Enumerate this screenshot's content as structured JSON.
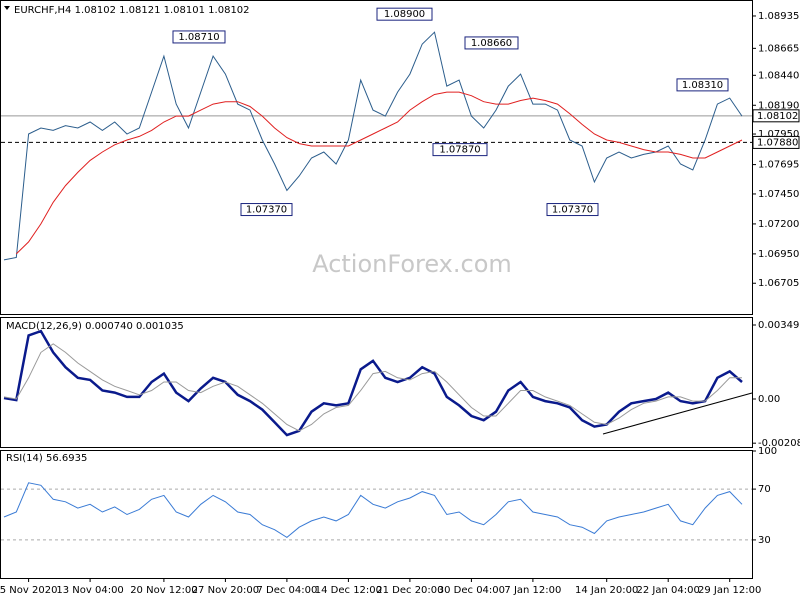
{
  "watermark": "ActionForex.com",
  "chart_data": [
    {
      "type": "line",
      "title": "EURCHF,H4  1.08102 1.08121 1.08101 1.08102",
      "ylim": [
        1.0644,
        1.0906
      ],
      "yticks": [
        1.08935,
        1.08665,
        {
          "value": 1.0844,
          "label": "1.08440"
        },
        {
          "value": 1.0819,
          "label": "1.08190"
        },
        {
          "value": 1.0795,
          "label": "1.07950"
        },
        1.07695,
        {
          "value": 1.0745,
          "label": "1.07450"
        },
        {
          "value": 1.072,
          "label": "1.07200"
        },
        {
          "value": 1.0695,
          "label": "1.06950"
        },
        1.06705
      ],
      "series": [
        {
          "color": "#2b5d8c",
          "values": [
            1.069,
            1.0692,
            1.0795,
            1.08,
            1.0798,
            1.0802,
            1.08,
            1.0805,
            1.0798,
            1.0805,
            1.0795,
            1.08,
            1.083,
            1.086,
            1.082,
            1.08,
            1.083,
            1.086,
            1.0845,
            1.082,
            1.0815,
            1.079,
            1.077,
            1.0748,
            1.076,
            1.0775,
            1.078,
            1.077,
            1.079,
            1.084,
            1.0815,
            1.081,
            1.083,
            1.0845,
            1.087,
            1.088,
            1.0835,
            1.084,
            1.081,
            1.08,
            1.0815,
            1.0835,
            1.0845,
            1.082,
            1.082,
            1.0815,
            1.079,
            1.0785,
            1.0755,
            1.0775,
            1.078,
            1.0775,
            1.0778,
            1.078,
            1.0785,
            1.077,
            1.0765,
            1.079,
            1.082,
            1.0825,
            1.081
          ]
        },
        {
          "color": "#e02020",
          "values": [
            null,
            1.0695,
            1.0705,
            1.072,
            1.0738,
            1.0752,
            1.0763,
            1.0773,
            1.078,
            1.0786,
            1.079,
            1.0793,
            1.0798,
            1.0805,
            1.081,
            1.081,
            1.0815,
            1.082,
            1.0822,
            1.0822,
            1.0818,
            1.081,
            1.08,
            1.0792,
            1.0787,
            1.0785,
            1.0785,
            1.0785,
            1.0785,
            1.079,
            1.0795,
            1.08,
            1.0805,
            1.0815,
            1.0822,
            1.0828,
            1.083,
            1.083,
            1.0827,
            1.0822,
            1.082,
            1.082,
            1.0823,
            1.0825,
            1.0823,
            1.082,
            1.0812,
            1.0803,
            1.0795,
            1.079,
            1.0788,
            1.0785,
            1.0782,
            1.078,
            1.078,
            1.0778,
            1.0775,
            1.0775,
            1.078,
            1.0785,
            1.079
          ]
        }
      ],
      "annotations": [
        {
          "value": 1.0871,
          "label": "1.08710"
        },
        {
          "value": 1.089,
          "label": "1.08900"
        },
        {
          "value": 1.0866,
          "label": "1.08660"
        },
        {
          "value": 1.0831,
          "label": "1.08310"
        },
        {
          "value": 1.0787,
          "label": "1.07870"
        },
        {
          "value": 1.0737,
          "label": "1.07370"
        },
        {
          "value": 1.0737,
          "label": "1.07370"
        }
      ],
      "price_markers": [
        {
          "value": 1.08102,
          "label": "1.08102"
        },
        {
          "value": 1.0788,
          "label": "1.07880"
        }
      ]
    },
    {
      "type": "line",
      "title": "MACD(12,26,9) 0.000740 0.001035",
      "ylim": [
        -0.00231,
        0.00382
      ],
      "yticks": [
        0.00349,
        {
          "value": 0,
          "label": "0.00"
        },
        -0.002083
      ],
      "series": [
        {
          "color": "#0a1a8c",
          "values": [
            5e-05,
            -5e-05,
            0.003,
            0.0032,
            0.0022,
            0.0015,
            0.001,
            0.0009,
            0.0004,
            0.0003,
            0.0001,
            0.0001,
            0.0008,
            0.0012,
            0.0003,
            -0.0001,
            0.0005,
            0.001,
            0.0008,
            0.0002,
            -0.0001,
            -0.0005,
            -0.0011,
            -0.0017,
            -0.0015,
            -0.0006,
            -0.0002,
            -0.0003,
            -0.0002,
            0.0014,
            0.0018,
            0.001,
            0.0008,
            0.001,
            0.0015,
            0.0012,
            0.0001,
            -0.0003,
            -0.0008,
            -0.001,
            -0.0006,
            0.0004,
            0.0008,
            0.0001,
            -0.0001,
            -0.0002,
            -0.0004,
            -0.001,
            -0.0013,
            -0.0012,
            -0.0006,
            -0.0002,
            -0.0001,
            0.0,
            0.0003,
            -0.0001,
            -0.0002,
            -0.0001,
            0.001,
            0.0013,
            0.0008
          ]
        },
        {
          "color": "#9a9a9a",
          "values": [
            0.0001,
            0.0,
            0.001,
            0.0022,
            0.0026,
            0.0022,
            0.0017,
            0.0013,
            0.0009,
            0.0006,
            0.0004,
            0.0002,
            0.0004,
            0.0008,
            0.0008,
            0.0004,
            0.0003,
            0.0006,
            0.0008,
            0.0006,
            0.0002,
            -0.0002,
            -0.0007,
            -0.0012,
            -0.0015,
            -0.0012,
            -0.0007,
            -0.0004,
            -0.0003,
            0.0004,
            0.0012,
            0.0013,
            0.001,
            0.0009,
            0.0012,
            0.0013,
            0.0008,
            0.0002,
            -0.0004,
            -0.0008,
            -0.0008,
            -0.0002,
            0.0004,
            0.0004,
            0.0001,
            -0.0001,
            -0.0003,
            -0.0007,
            -0.0011,
            -0.0012,
            -0.0009,
            -0.0005,
            -0.0002,
            -0.0001,
            0.0001,
            0.0001,
            -0.0001,
            -0.0001,
            0.0004,
            0.001,
            0.001
          ]
        }
      ]
    },
    {
      "type": "line",
      "title": "RSI(14) 56.6935",
      "ylim": [
        0,
        100
      ],
      "yticks": [
        100,
        70,
        30
      ],
      "categories": [
        null,
        null,
        "5 Nov 2020",
        null,
        null,
        null,
        null,
        "13 Nov 04:00",
        null,
        null,
        null,
        null,
        null,
        "20 Nov 12:00",
        null,
        null,
        null,
        null,
        "27 Nov 20:00",
        null,
        null,
        null,
        null,
        "7 Dec 04:00",
        null,
        null,
        null,
        null,
        "14 Dec 12:00",
        null,
        null,
        null,
        null,
        "21 Dec 20:00",
        null,
        null,
        null,
        null,
        "30 Dec 04:00",
        null,
        null,
        null,
        null,
        "7 Jan 12:00",
        null,
        null,
        null,
        null,
        null,
        "14 Jan 20:00",
        null,
        null,
        null,
        null,
        "22 Jan 04:00",
        null,
        null,
        null,
        null,
        "29 Jan 12:00",
        null
      ],
      "series": [
        {
          "color": "#3a7bd5",
          "values": [
            48,
            52,
            75,
            73,
            62,
            60,
            55,
            58,
            52,
            56,
            50,
            54,
            62,
            65,
            52,
            48,
            58,
            65,
            60,
            52,
            50,
            42,
            38,
            32,
            40,
            45,
            48,
            45,
            50,
            65,
            58,
            55,
            60,
            63,
            68,
            65,
            50,
            52,
            45,
            42,
            50,
            60,
            62,
            52,
            50,
            48,
            42,
            40,
            35,
            45,
            48,
            50,
            52,
            55,
            58,
            45,
            42,
            55,
            65,
            68,
            58
          ]
        }
      ]
    }
  ]
}
